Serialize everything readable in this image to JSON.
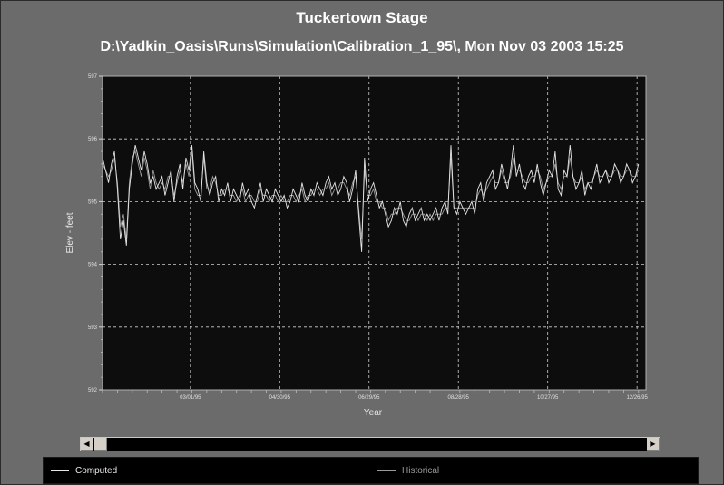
{
  "window": {
    "title": "Tuckertown Stage",
    "subtitle": "D:\\Yadkin_Oasis\\Runs\\Simulation\\Calibration_1_95\\, Mon Nov 03 2003 15:25"
  },
  "colors": {
    "background": "#6b6b6b",
    "plot_bg": "#0d0d0d",
    "grid": "#cfcfcf",
    "computed": "#e6e6e6",
    "historical": "#9a9a9a"
  },
  "scrollbar": {
    "left_icon": "arrow-left-icon",
    "right_icon": "arrow-right-icon"
  },
  "legend": {
    "computed": "Computed",
    "historical": "Historical"
  },
  "chart_data": {
    "type": "line",
    "title": "Tuckertown Stage",
    "xlabel": "Year",
    "ylabel": "Elev - feet",
    "ylim": [
      592,
      597
    ],
    "yticks": [
      "597",
      "596",
      "595",
      "594",
      "593",
      "592"
    ],
    "xlim_days": [
      0,
      365
    ],
    "xticks": [
      {
        "label": "03/01/95",
        "day": 59
      },
      {
        "label": "04/30/95",
        "day": 119
      },
      {
        "label": "06/29/95",
        "day": 179
      },
      {
        "label": "08/28/95",
        "day": 239
      },
      {
        "label": "10/27/95",
        "day": 299
      },
      {
        "label": "12/26/95",
        "day": 359
      }
    ],
    "grid": true,
    "legend_position": "bottom",
    "series": [
      {
        "name": "Computed",
        "start_date": "1995-01-01",
        "step_days": 2,
        "values": [
          595.7,
          595.5,
          595.3,
          595.6,
          595.8,
          595.2,
          594.4,
          594.7,
          594.3,
          595.2,
          595.6,
          595.9,
          595.7,
          595.5,
          595.8,
          595.6,
          595.3,
          595.4,
          595.2,
          595.3,
          595.4,
          595.1,
          595.3,
          595.5,
          595.0,
          595.4,
          595.6,
          595.2,
          595.7,
          595.5,
          595.9,
          595.3,
          595.2,
          595.0,
          595.8,
          595.3,
          595.1,
          595.3,
          595.4,
          595.0,
          595.2,
          595.1,
          595.3,
          595.0,
          595.2,
          595.1,
          595.0,
          595.3,
          595.1,
          595.2,
          595.0,
          594.9,
          595.1,
          595.3,
          595.0,
          595.2,
          595.1,
          595.0,
          595.2,
          595.1,
          595.0,
          595.1,
          594.9,
          595.0,
          595.2,
          595.1,
          595.0,
          595.3,
          595.1,
          595.0,
          595.2,
          595.1,
          595.3,
          595.2,
          595.1,
          595.3,
          595.4,
          595.2,
          595.3,
          595.1,
          595.2,
          595.4,
          595.3,
          595.0,
          595.2,
          595.5,
          594.8,
          594.2,
          595.7,
          595.0,
          595.2,
          595.3,
          595.1,
          594.9,
          595.0,
          594.8,
          594.6,
          594.7,
          594.9,
          594.8,
          595.0,
          594.7,
          594.6,
          594.8,
          594.9,
          594.7,
          594.8,
          594.9,
          594.7,
          594.8,
          594.7,
          594.8,
          594.9,
          594.7,
          594.9,
          595.0,
          594.8,
          595.9,
          594.9,
          594.8,
          595.0,
          594.9,
          594.8,
          594.9,
          595.0,
          594.8,
          595.2,
          595.3,
          595.0,
          595.3,
          595.4,
          595.5,
          595.2,
          595.3,
          595.6,
          595.4,
          595.2,
          595.5,
          595.9,
          595.4,
          595.6,
          595.3,
          595.2,
          595.4,
          595.5,
          595.3,
          595.6,
          595.3,
          595.1,
          595.3,
          595.5,
          595.4,
          595.8,
          595.2,
          595.1,
          595.5,
          595.4,
          595.9,
          595.4,
          595.2,
          595.3,
          595.5,
          595.1,
          595.3,
          595.2,
          595.4,
          595.6,
          595.3,
          595.4,
          595.5,
          595.3,
          595.4,
          595.6,
          595.5,
          595.3,
          595.4,
          595.6,
          595.5,
          595.3,
          595.4,
          595.6
        ]
      },
      {
        "name": "Historical",
        "start_date": "1995-01-01",
        "step_days": 2,
        "values": [
          595.6,
          595.5,
          595.4,
          595.5,
          595.7,
          595.3,
          594.6,
          594.8,
          594.4,
          595.3,
          595.7,
          595.8,
          595.6,
          595.4,
          595.7,
          595.5,
          595.2,
          595.5,
          595.3,
          595.2,
          595.3,
          595.2,
          595.4,
          595.4,
          595.1,
          595.3,
          595.5,
          595.3,
          595.6,
          595.4,
          595.8,
          595.2,
          595.1,
          595.1,
          595.7,
          595.2,
          595.2,
          595.4,
          595.3,
          595.1,
          595.1,
          595.2,
          595.2,
          595.1,
          595.1,
          595.0,
          595.1,
          595.2,
          595.0,
          595.1,
          595.1,
          595.0,
          595.0,
          595.2,
          595.1,
          595.1,
          595.0,
          595.1,
          595.1,
          595.0,
          595.1,
          595.0,
          595.0,
          595.1,
          595.1,
          595.0,
          595.1,
          595.2,
          595.0,
          595.1,
          595.1,
          595.2,
          595.2,
          595.1,
          595.2,
          595.2,
          595.3,
          595.1,
          595.2,
          595.2,
          595.3,
          595.3,
          595.2,
          595.1,
          595.3,
          595.4,
          594.9,
          594.4,
          595.5,
          595.1,
          595.1,
          595.2,
          595.0,
          595.0,
          594.9,
          594.9,
          594.7,
          594.8,
          594.8,
          594.9,
          594.9,
          594.8,
          594.7,
          594.7,
          594.8,
          594.8,
          594.7,
          594.8,
          594.8,
          594.7,
          594.8,
          594.7,
          594.8,
          594.8,
          594.8,
          594.9,
          594.9,
          595.7,
          594.9,
          594.9,
          594.9,
          594.9,
          594.9,
          594.9,
          594.9,
          594.9,
          595.1,
          595.2,
          595.1,
          595.2,
          595.3,
          595.4,
          595.3,
          595.3,
          595.5,
          595.3,
          595.3,
          595.4,
          595.7,
          595.5,
          595.5,
          595.4,
          595.3,
          595.3,
          595.4,
          595.4,
          595.5,
          595.4,
          595.2,
          595.3,
          595.4,
          595.4,
          595.6,
          595.3,
          595.2,
          595.4,
          595.4,
          595.7,
          595.4,
          595.3,
          595.3,
          595.4,
          595.2,
          595.3,
          595.3,
          595.4,
          595.5,
          595.4,
          595.4,
          595.5,
          595.4,
          595.4,
          595.5,
          595.5,
          595.4,
          595.4,
          595.5,
          595.5,
          595.4,
          595.4,
          595.5
        ]
      }
    ]
  }
}
